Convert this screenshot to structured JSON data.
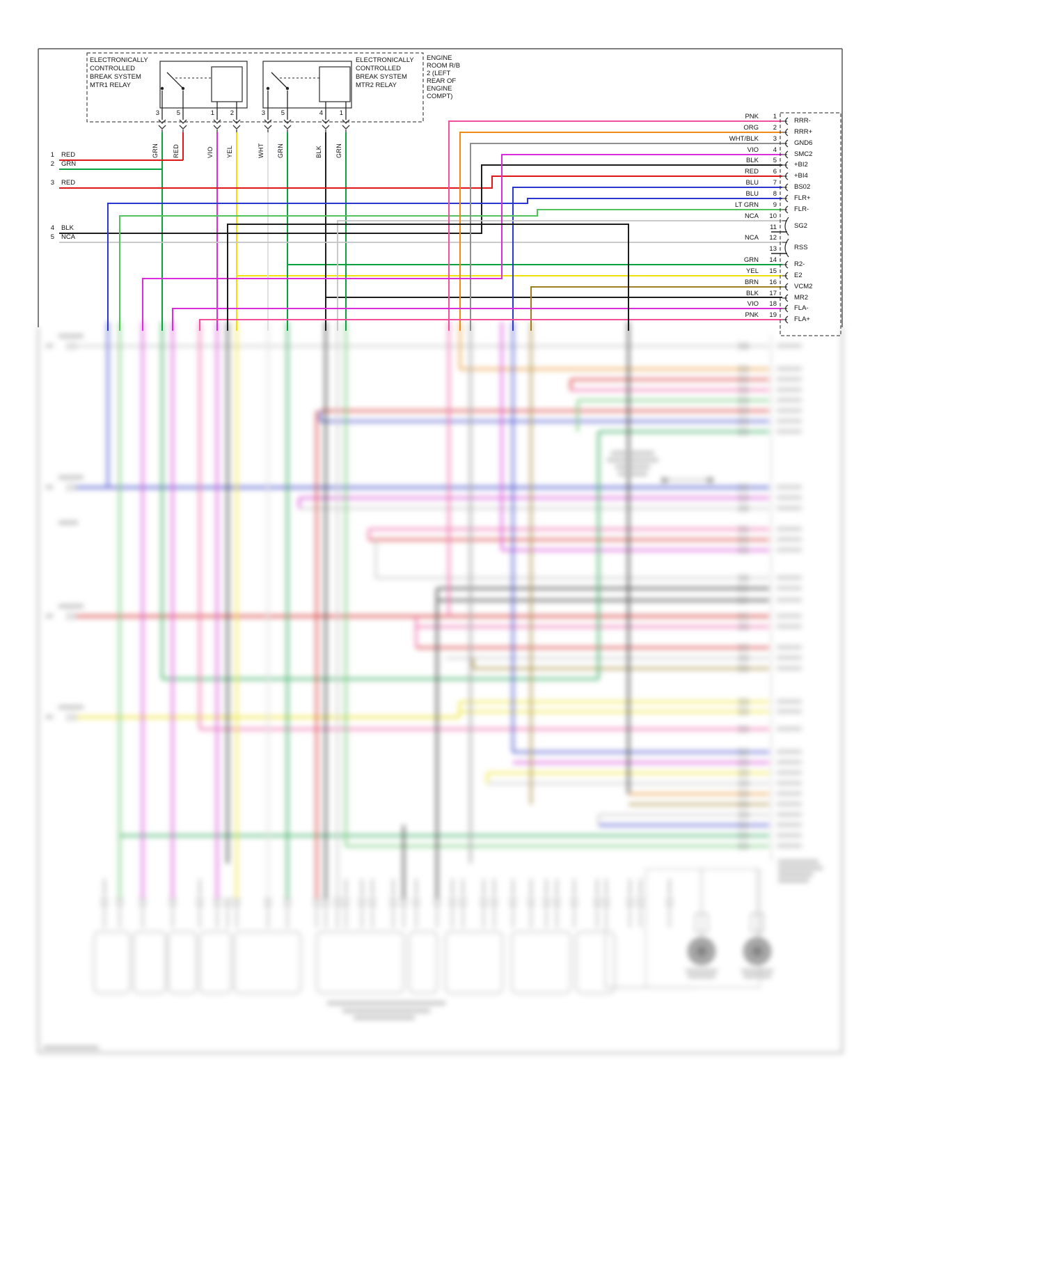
{
  "relay_block": {
    "mtr1": {
      "name_lines": [
        "ELECTRONICALLY",
        "CONTROLLED",
        "BREAK SYSTEM",
        "MTR1 RELAY"
      ],
      "pins": [
        "3",
        "5",
        "1",
        "2"
      ]
    },
    "mtr2": {
      "name_lines": [
        "ELECTRONICALLY",
        "CONTROLLED",
        "BREAK SYSTEM",
        "MTR2 RELAY"
      ],
      "pins": [
        "3",
        "5",
        "4",
        "1"
      ]
    },
    "location_lines": [
      "ENGINE",
      "ROOM R/B",
      "2 (LEFT",
      "REAR OF",
      "ENGINE",
      "COMPT)"
    ]
  },
  "wire_color_labels": [
    "GRN",
    "RED",
    "VIO",
    "YEL",
    "WHT",
    "GRN",
    "BLK",
    "GRN"
  ],
  "left_wires": [
    {
      "num": "1",
      "color": "RED"
    },
    {
      "num": "2",
      "color": "GRN"
    },
    {
      "num": "3",
      "color": "RED"
    },
    {
      "num": "4",
      "color": "BLK"
    },
    {
      "num": "5",
      "color": "NCA"
    }
  ],
  "right_connector": {
    "pins": [
      {
        "num": "1",
        "wire": "PNK",
        "signal": "RRR-"
      },
      {
        "num": "2",
        "wire": "ORG",
        "signal": "RRR+"
      },
      {
        "num": "3",
        "wire": "WHT/BLK",
        "signal": "GND6"
      },
      {
        "num": "4",
        "wire": "VIO",
        "signal": "SMC2"
      },
      {
        "num": "5",
        "wire": "BLK",
        "signal": "+BI2"
      },
      {
        "num": "6",
        "wire": "RED",
        "signal": "+BI4"
      },
      {
        "num": "7",
        "wire": "BLU",
        "signal": "BS02"
      },
      {
        "num": "8",
        "wire": "BLU",
        "signal": "FLR+"
      },
      {
        "num": "9",
        "wire": "LT GRN",
        "signal": "FLR-"
      },
      {
        "num": "10",
        "wire": "NCA",
        "signal": ""
      },
      {
        "num": "11",
        "wire": "",
        "signal": ""
      },
      {
        "num": "12",
        "wire": "NCA",
        "signal": ""
      },
      {
        "num": "13",
        "wire": "",
        "signal": ""
      },
      {
        "num": "14",
        "wire": "GRN",
        "signal": "R2-"
      },
      {
        "num": "15",
        "wire": "YEL",
        "signal": "E2"
      },
      {
        "num": "16",
        "wire": "BRN",
        "signal": "VCM2"
      },
      {
        "num": "17",
        "wire": "BLK",
        "signal": "MR2"
      },
      {
        "num": "18",
        "wire": "VIO",
        "signal": "FLA-"
      },
      {
        "num": "19",
        "wire": "PNK",
        "signal": "FLA+"
      }
    ],
    "span_labels": [
      {
        "rows": "10-11",
        "signal": "SG2"
      },
      {
        "rows": "12-13",
        "signal": "RSS"
      }
    ]
  },
  "palette": {
    "RED": "#de1616",
    "GRN": "#0aa13f",
    "LT_GRN": "#52c25c",
    "BLU": "#2b35cf",
    "YEL": "#efdf0a",
    "VIO": "#da2cda",
    "PNK": "#f44f9d",
    "ORG": "#ee8a15",
    "BRN": "#9d7d22",
    "BLK": "#1c1c1c",
    "WHT": "#dcdcdc",
    "NCA": "#c3c3c3",
    "WHT_BLK": "#8e8e8e"
  }
}
